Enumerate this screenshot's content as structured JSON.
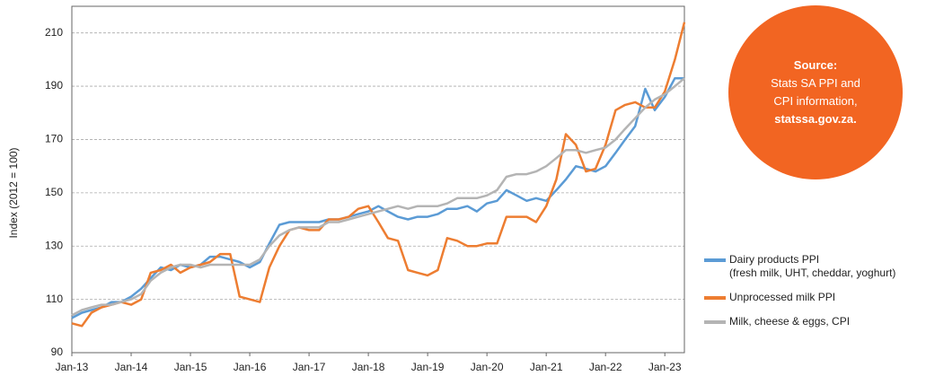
{
  "chart_data": {
    "type": "line",
    "y_label": "Index (2012 = 100)",
    "x": [
      2013,
      2013.17,
      2013.33,
      2013.5,
      2013.67,
      2013.83,
      2014,
      2014.17,
      2014.33,
      2014.5,
      2014.67,
      2014.83,
      2015,
      2015.17,
      2015.33,
      2015.5,
      2015.67,
      2015.83,
      2016,
      2016.17,
      2016.33,
      2016.5,
      2016.67,
      2016.83,
      2017,
      2017.17,
      2017.33,
      2017.5,
      2017.67,
      2017.83,
      2018,
      2018.17,
      2018.33,
      2018.5,
      2018.67,
      2018.83,
      2019,
      2019.17,
      2019.33,
      2019.5,
      2019.67,
      2019.83,
      2020,
      2020.17,
      2020.33,
      2020.5,
      2020.67,
      2020.83,
      2021,
      2021.17,
      2021.33,
      2021.5,
      2021.67,
      2021.83,
      2022,
      2022.17,
      2022.33,
      2022.5,
      2022.67,
      2022.83,
      2023,
      2023.17,
      2023.33
    ],
    "series": [
      {
        "name": "Dairy products PPI\n(fresh milk, UHT, cheddar, yoghurt)",
        "color": "#5b9bd5",
        "values": [
          103,
          105,
          106,
          107,
          109,
          109,
          111,
          114,
          118,
          122,
          121,
          123,
          122,
          123,
          126,
          126,
          125,
          124,
          122,
          124,
          131,
          138,
          139,
          139,
          139,
          139,
          140,
          140,
          141,
          142,
          143,
          145,
          143,
          141,
          140,
          141,
          141,
          142,
          144,
          144,
          145,
          143,
          146,
          147,
          151,
          149,
          147,
          148,
          147,
          151,
          155,
          160,
          159,
          158,
          160,
          165,
          170,
          175,
          189,
          181,
          186,
          193,
          193
        ]
      },
      {
        "name": "Unprocessed milk PPI",
        "color": "#ed7d31",
        "values": [
          101,
          100,
          105,
          107,
          108,
          109,
          108,
          110,
          120,
          121,
          123,
          120,
          122,
          123,
          124,
          127,
          127,
          111,
          110,
          109,
          122,
          130,
          136,
          137,
          136,
          136,
          140,
          140,
          141,
          144,
          145,
          139,
          133,
          132,
          121,
          120,
          119,
          121,
          133,
          132,
          130,
          130,
          131,
          131,
          141,
          141,
          141,
          139,
          145,
          155,
          172,
          168,
          158,
          159,
          168,
          181,
          183,
          184,
          182,
          182,
          188,
          200,
          214
        ]
      },
      {
        "name": "Milk, cheese & eggs, CPI",
        "color": "#b4b4b4",
        "values": [
          104,
          106,
          107,
          108,
          108,
          109,
          110,
          112,
          117,
          120,
          122,
          123,
          123,
          122,
          123,
          123,
          123,
          123,
          123,
          125,
          130,
          134,
          136,
          137,
          137,
          137,
          139,
          139,
          140,
          141,
          142,
          143,
          144,
          145,
          144,
          145,
          145,
          145,
          146,
          148,
          148,
          148,
          149,
          151,
          156,
          157,
          157,
          158,
          160,
          163,
          166,
          166,
          165,
          166,
          167,
          170,
          174,
          178,
          182,
          185,
          187,
          190,
          193
        ]
      }
    ],
    "xlim": [
      2013,
      2023.33
    ],
    "xticks": [
      {
        "value": 2013,
        "label": "Jan-13"
      },
      {
        "value": 2014,
        "label": "Jan-14"
      },
      {
        "value": 2015,
        "label": "Jan-15"
      },
      {
        "value": 2016,
        "label": "Jan-16"
      },
      {
        "value": 2017,
        "label": "Jan-17"
      },
      {
        "value": 2018,
        "label": "Jan-18"
      },
      {
        "value": 2019,
        "label": "Jan-19"
      },
      {
        "value": 2020,
        "label": "Jan-20"
      },
      {
        "value": 2021,
        "label": "Jan-21"
      },
      {
        "value": 2022,
        "label": "Jan-22"
      },
      {
        "value": 2023,
        "label": "Jan-23"
      }
    ],
    "ylim": [
      90,
      220
    ],
    "yticks": [
      90,
      110,
      130,
      150,
      170,
      190,
      210
    ],
    "grid": true,
    "annotation": {
      "title": "Source:",
      "lines": [
        "Stats SA PPI and",
        "CPI information,"
      ],
      "link": "statssa.gov.za."
    }
  }
}
